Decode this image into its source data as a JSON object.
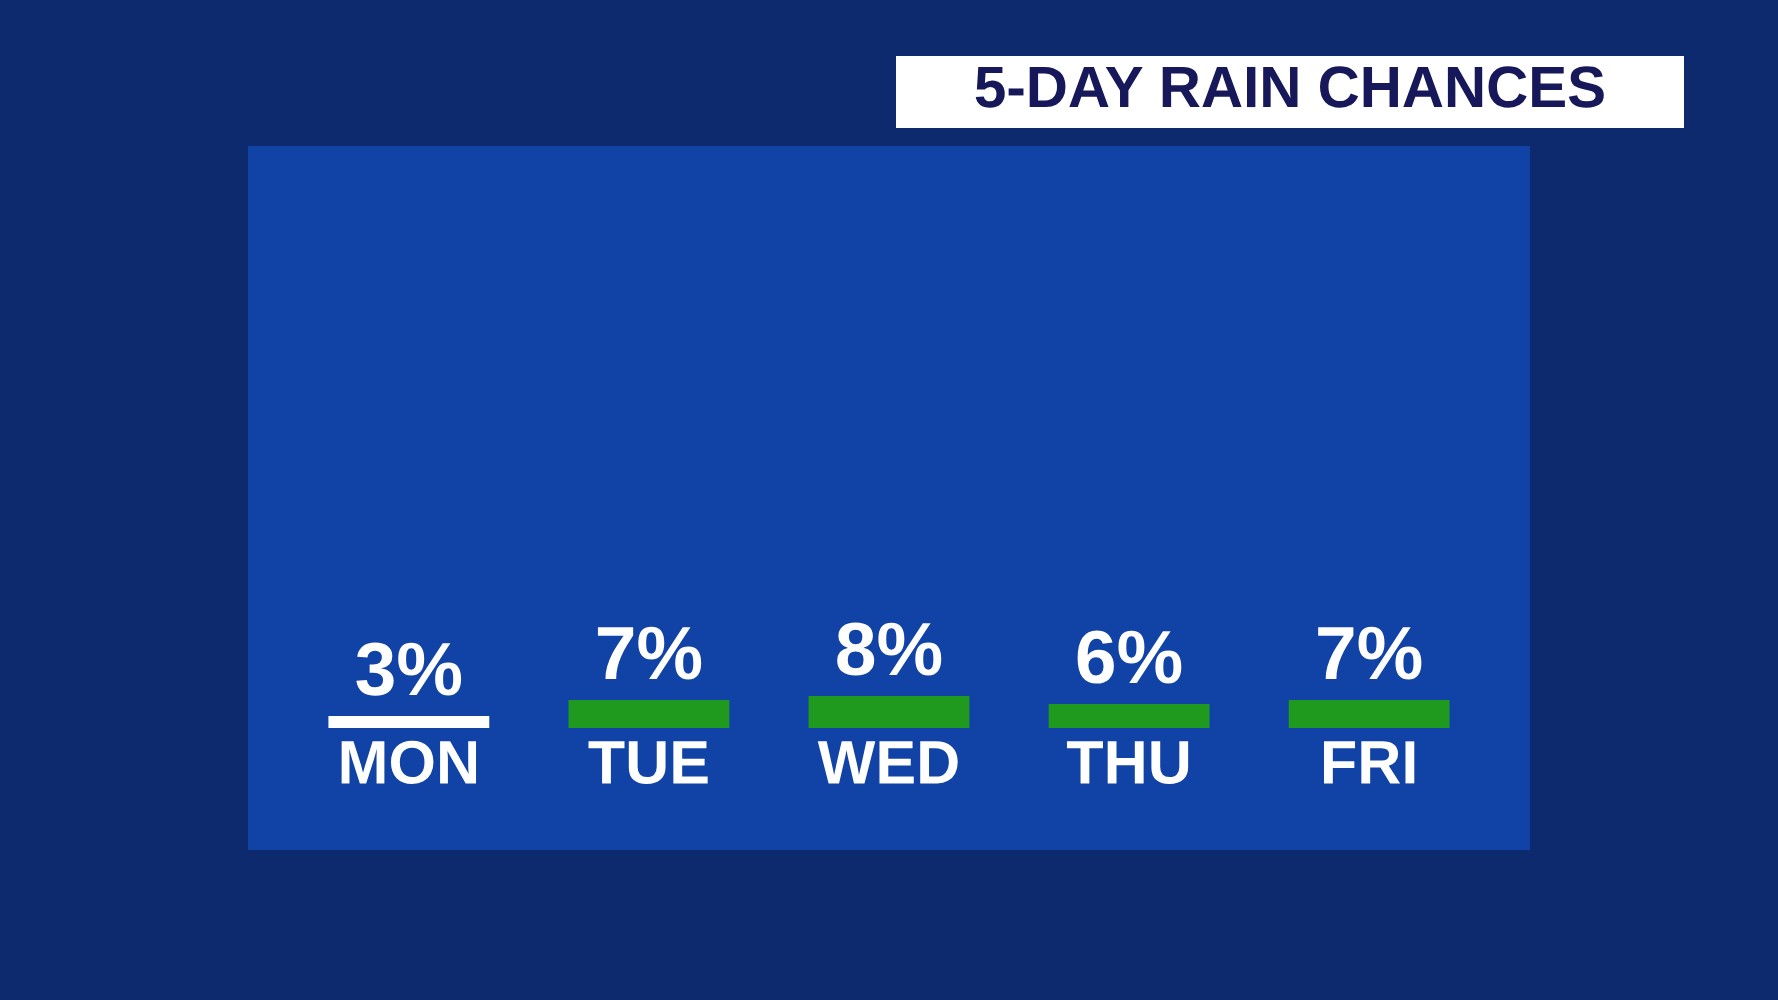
{
  "chart_data": {
    "type": "bar",
    "title": "5-DAY RAIN CHANCES",
    "categories": [
      "MON",
      "TUE",
      "WED",
      "THU",
      "FRI"
    ],
    "values": [
      3,
      7,
      8,
      6,
      7
    ],
    "colors": [
      "#ffffff",
      "#1f9a1f",
      "#1f9a1f",
      "#1f9a1f",
      "#1f9a1f"
    ],
    "value_labels": [
      "3%",
      "7%",
      "8%",
      "6%",
      "7%"
    ]
  }
}
